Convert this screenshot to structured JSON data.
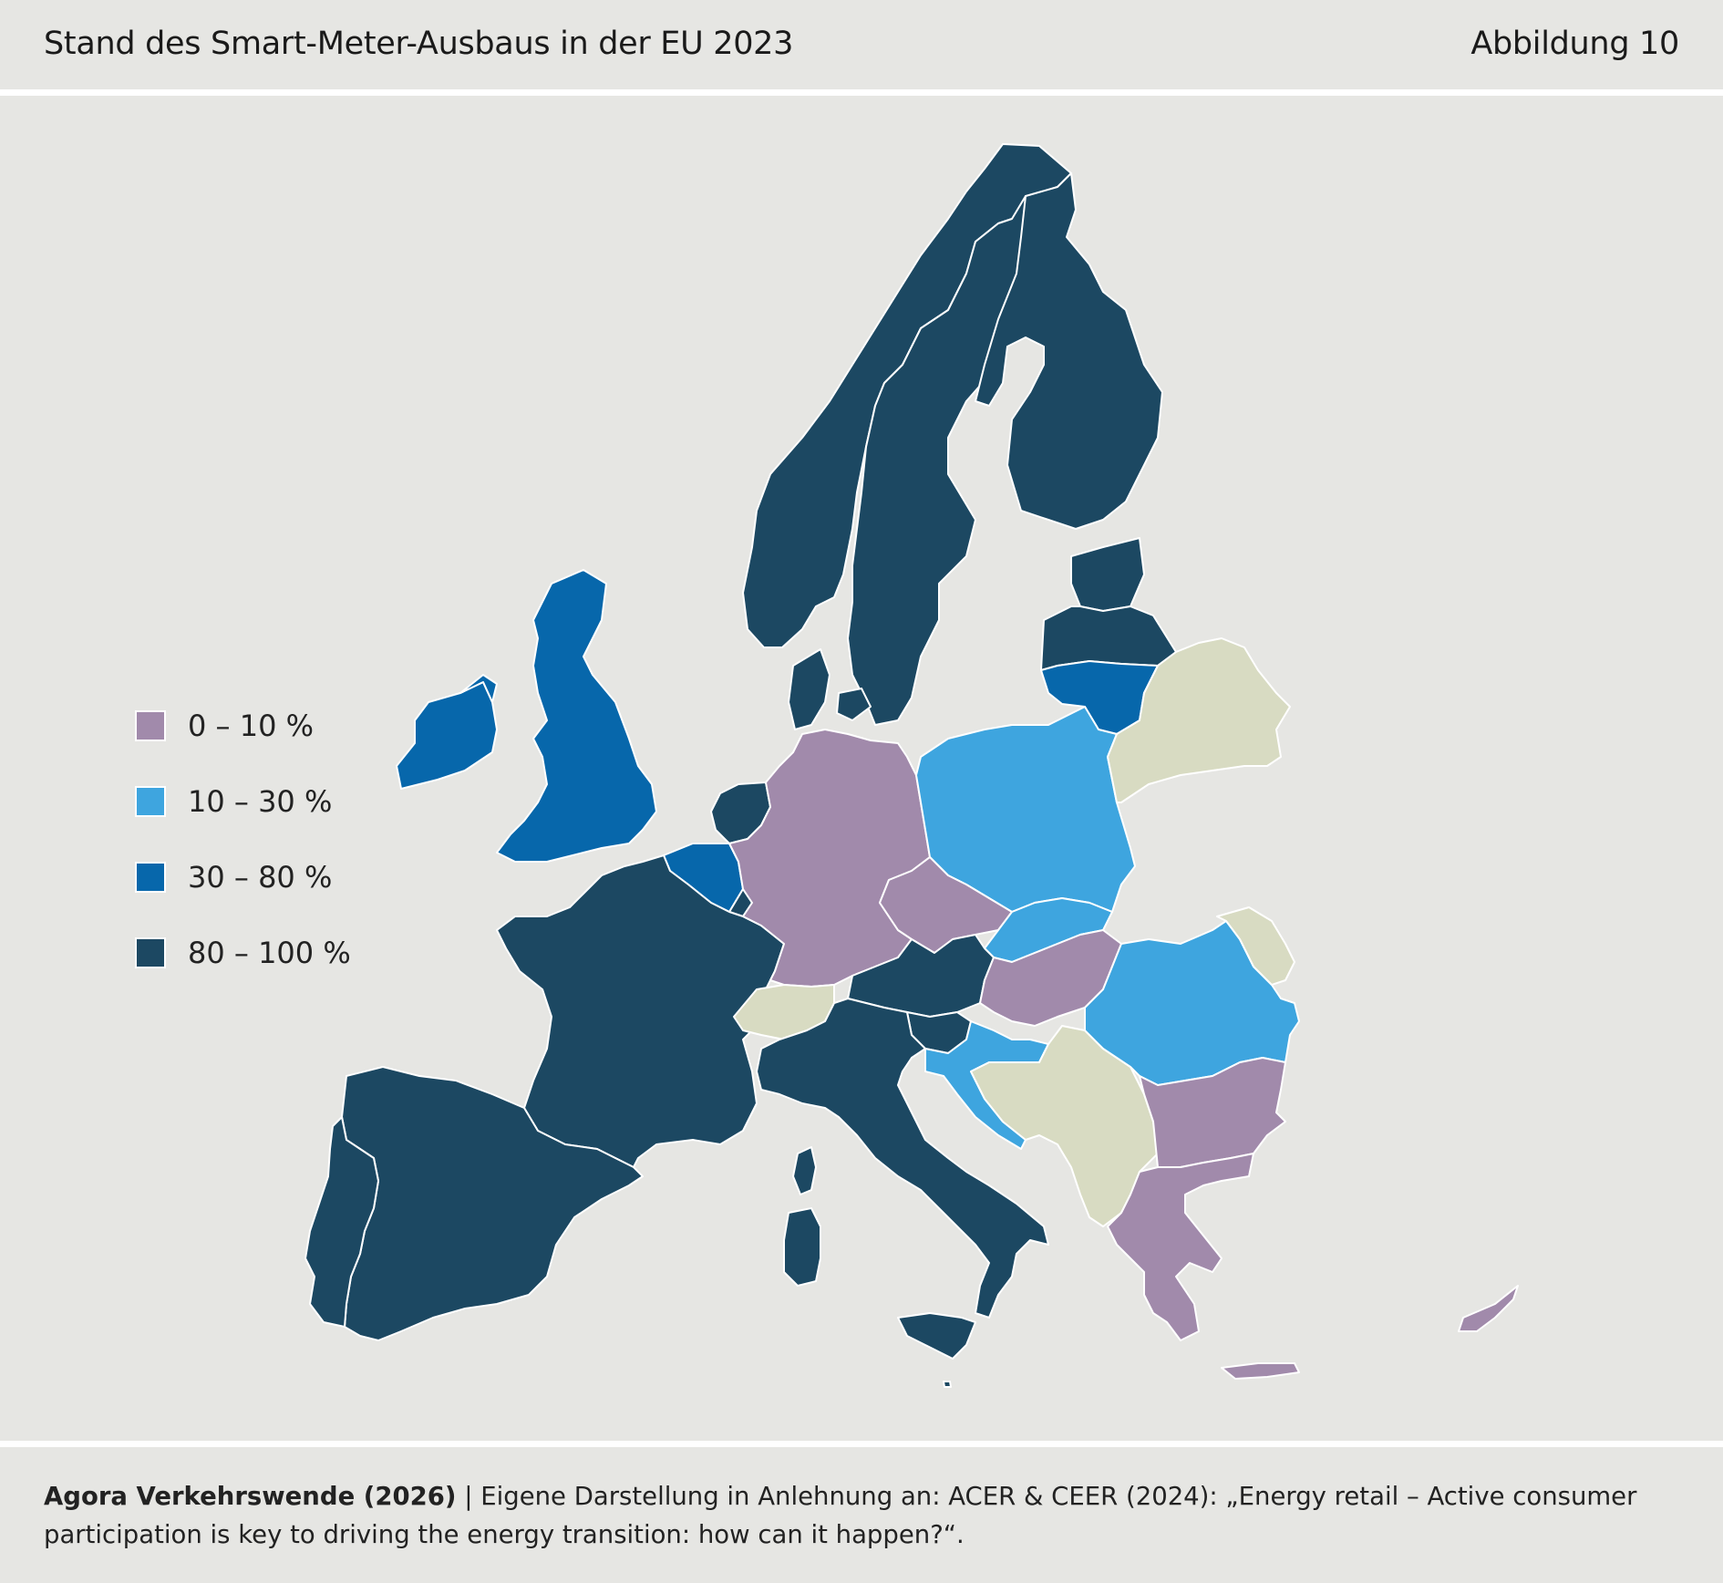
{
  "header": {
    "title": "Stand des Smart-Meter-Ausbaus in der EU 2023",
    "figure_number": "Abbildung 10"
  },
  "legend": [
    {
      "label": "0 – 10 %",
      "color": "#a18aab"
    },
    {
      "label": "10 – 30 %",
      "color": "#3ea5df"
    },
    {
      "label": "30 – 80 %",
      "color": "#0767ab"
    },
    {
      "label": "80 – 100 %",
      "color": "#1c4862"
    }
  ],
  "colors": {
    "background": "#e6e6e3",
    "non_eu": "#d8dbc2",
    "borders": "#ffffff"
  },
  "map_data": {
    "type": "choropleth",
    "regions": [
      {
        "country": "Norway",
        "category": "80 – 100 %"
      },
      {
        "country": "Sweden",
        "category": "80 – 100 %"
      },
      {
        "country": "Finland",
        "category": "80 – 100 %"
      },
      {
        "country": "Estonia",
        "category": "80 – 100 %"
      },
      {
        "country": "Latvia",
        "category": "80 – 100 %"
      },
      {
        "country": "Lithuania",
        "category": "30 – 80 %"
      },
      {
        "country": "Denmark",
        "category": "80 – 100 %"
      },
      {
        "country": "United Kingdom",
        "category": "30 – 80 %"
      },
      {
        "country": "Ireland",
        "category": "30 – 80 %"
      },
      {
        "country": "Netherlands",
        "category": "80 – 100 %"
      },
      {
        "country": "Belgium",
        "category": "30 – 80 %"
      },
      {
        "country": "Luxembourg",
        "category": "80 – 100 %"
      },
      {
        "country": "Germany",
        "category": "0 – 10 %"
      },
      {
        "country": "Poland",
        "category": "10 – 30 %"
      },
      {
        "country": "Czechia",
        "category": "0 – 10 %"
      },
      {
        "country": "Slovakia",
        "category": "10 – 30 %"
      },
      {
        "country": "Austria",
        "category": "80 – 100 %"
      },
      {
        "country": "Hungary",
        "category": "0 – 10 %"
      },
      {
        "country": "Slovenia",
        "category": "80 – 100 %"
      },
      {
        "country": "Croatia",
        "category": "10 – 30 %"
      },
      {
        "country": "Romania",
        "category": "10 – 30 %"
      },
      {
        "country": "Bulgaria",
        "category": "0 – 10 %"
      },
      {
        "country": "Greece",
        "category": "0 – 10 %"
      },
      {
        "country": "Cyprus",
        "category": "0 – 10 %"
      },
      {
        "country": "France",
        "category": "80 – 100 %"
      },
      {
        "country": "Spain",
        "category": "80 – 100 %"
      },
      {
        "country": "Portugal",
        "category": "80 – 100 %"
      },
      {
        "country": "Italy",
        "category": "80 – 100 %"
      },
      {
        "country": "Malta",
        "category": "80 – 100 %"
      },
      {
        "country": "Switzerland",
        "category": "non-EU"
      },
      {
        "country": "Belarus",
        "category": "non-EU"
      },
      {
        "country": "Moldova",
        "category": "non-EU"
      },
      {
        "country": "Western Balkans",
        "category": "non-EU"
      }
    ]
  },
  "footer": {
    "source_bold": "Agora Verkehrswende (2026)",
    "source_text": " | Eigene Darstellung in Anlehnung an: ACER & CEER (2024): „Energy retail – Active consumer participation is key to driving the energy transition: how can it happen?“."
  }
}
